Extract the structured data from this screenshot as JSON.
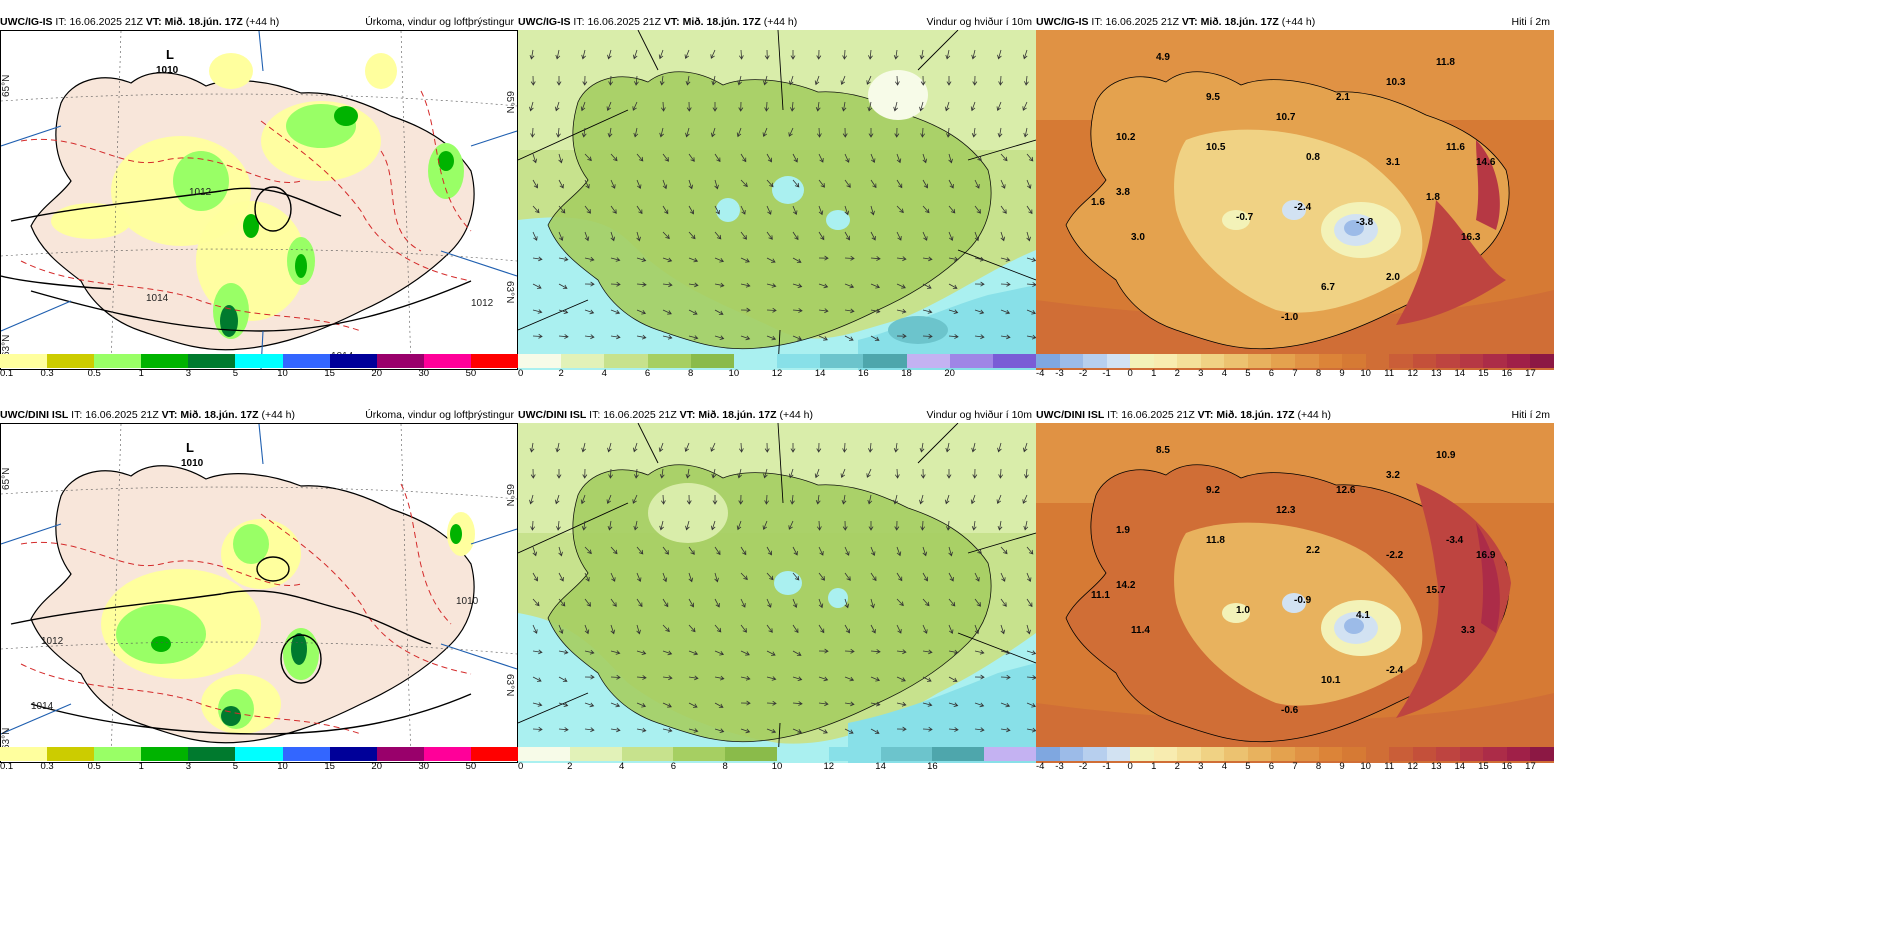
{
  "rows": [
    {
      "model": "UWC/IG-IS",
      "it_label": "IT:",
      "it_value": "16.06.2025 21Z",
      "vt_label": "VT:",
      "vt_value": "Mið. 18.jún. 17Z",
      "lead": "(+44 h)",
      "panels": {
        "precip": {
          "title": "Úrkoma, vindur og loftþrýstingur",
          "low_label": "L",
          "low_value": "1010",
          "isobar_labels": [
            "1012",
            "1014",
            "1012",
            "1014"
          ],
          "lat_labels": [
            "65°N",
            "65°N",
            "63°N",
            "63°N"
          ]
        },
        "wind": {
          "title": "Vindur og hviður í 10m"
        },
        "temp": {
          "title": "Hiti í 2m",
          "spot_values": [
            "4.9",
            "9.5",
            "10.2",
            "10.5",
            "3.8",
            "1.6",
            "3.0",
            "10.7",
            "2.1",
            "10.3",
            "11.8",
            "0.8",
            "-0.7",
            "-2.4",
            "3.1",
            "11.6",
            "14.6",
            "-3.8",
            "1.8",
            "16.3",
            "2.0",
            "6.7",
            "-1.0"
          ]
        }
      }
    },
    {
      "model": "UWC/DINI ISL",
      "it_label": "IT:",
      "it_value": "16.06.2025 21Z",
      "vt_label": "VT:",
      "vt_value": "Mið. 18.jún. 17Z",
      "lead": "(+44 h)",
      "panels": {
        "precip": {
          "title": "Úrkoma, vindur og loftþrýstingur",
          "low_label": "L",
          "low_value": "1010",
          "isobar_labels": [
            "1012",
            "1014",
            "1010"
          ],
          "lat_labels": [
            "65°N",
            "65°N",
            "63°N",
            "63°N"
          ]
        },
        "wind": {
          "title": "Vindur og hviður í 10m"
        },
        "temp": {
          "title": "Hiti í 2m",
          "spot_values": [
            "8.5",
            "9.2",
            "1.9",
            "11.8",
            "14.2",
            "11.1",
            "11.4",
            "12.3",
            "12.6",
            "3.2",
            "10.9",
            "2.2",
            "1.0",
            "-0.9",
            "-2.2",
            "-3.4",
            "16.9",
            "4.1",
            "15.7",
            "3.3",
            "-2.4",
            "10.1",
            "-0.6"
          ]
        }
      }
    }
  ],
  "legends": {
    "precip": {
      "labels": [
        "0.1",
        "0.3",
        "0.5",
        "1",
        "3",
        "5",
        "10",
        "15",
        "20",
        "30",
        "50"
      ],
      "colors": [
        "#ffff9e",
        "#cccc00",
        "#99ff66",
        "#00b300",
        "#007a2e",
        "#00ffff",
        "#3366ff",
        "#000099",
        "#99006b",
        "#ff0099",
        "#ff0000"
      ]
    },
    "wind_top": {
      "labels": [
        "0",
        "2",
        "4",
        "6",
        "8",
        "10",
        "12",
        "14",
        "16",
        "18",
        "20"
      ],
      "colors": [
        "#f7fbe8",
        "#e2f2b8",
        "#c7e28d",
        "#a6cf62",
        "#8abb4a",
        "#aaf0f0",
        "#88e0e8",
        "#6cc4cc",
        "#4ea6ac",
        "#c4b2f2",
        "#9f86e6",
        "#7a5cd6"
      ]
    },
    "wind_bottom": {
      "labels": [
        "0",
        "2",
        "4",
        "6",
        "8",
        "10",
        "12",
        "14",
        "16"
      ],
      "colors": [
        "#f7fbe8",
        "#e2f2b8",
        "#c7e28d",
        "#a6cf62",
        "#8abb4a",
        "#aaf0f0",
        "#88e0e8",
        "#6cc4cc",
        "#4ea6ac",
        "#c4b2f2"
      ]
    },
    "temp": {
      "labels": [
        "-4",
        "-3",
        "-2",
        "-1",
        "0",
        "1",
        "2",
        "3",
        "4",
        "5",
        "6",
        "7",
        "8",
        "9",
        "10",
        "11",
        "12",
        "13",
        "14",
        "15",
        "16",
        "17"
      ],
      "colors": [
        "#7fa7e0",
        "#9cbbe8",
        "#b7cfee",
        "#d2e2f2",
        "#f3f2b8",
        "#f8ecb0",
        "#f4e09a",
        "#f0d284",
        "#ecc270",
        "#e8b25e",
        "#e4a24e",
        "#e09244",
        "#dc8438",
        "#d67a34",
        "#d06e36",
        "#ca5e38",
        "#c4503a",
        "#be4440",
        "#b63844",
        "#ac2c48",
        "#a02048",
        "#8c1844"
      ]
    }
  },
  "colors": {
    "land_bg": "#f8e6da",
    "contour": "#000000",
    "isotherm_red": "#d42a2a",
    "grid_blue": "#1f5fb0"
  }
}
